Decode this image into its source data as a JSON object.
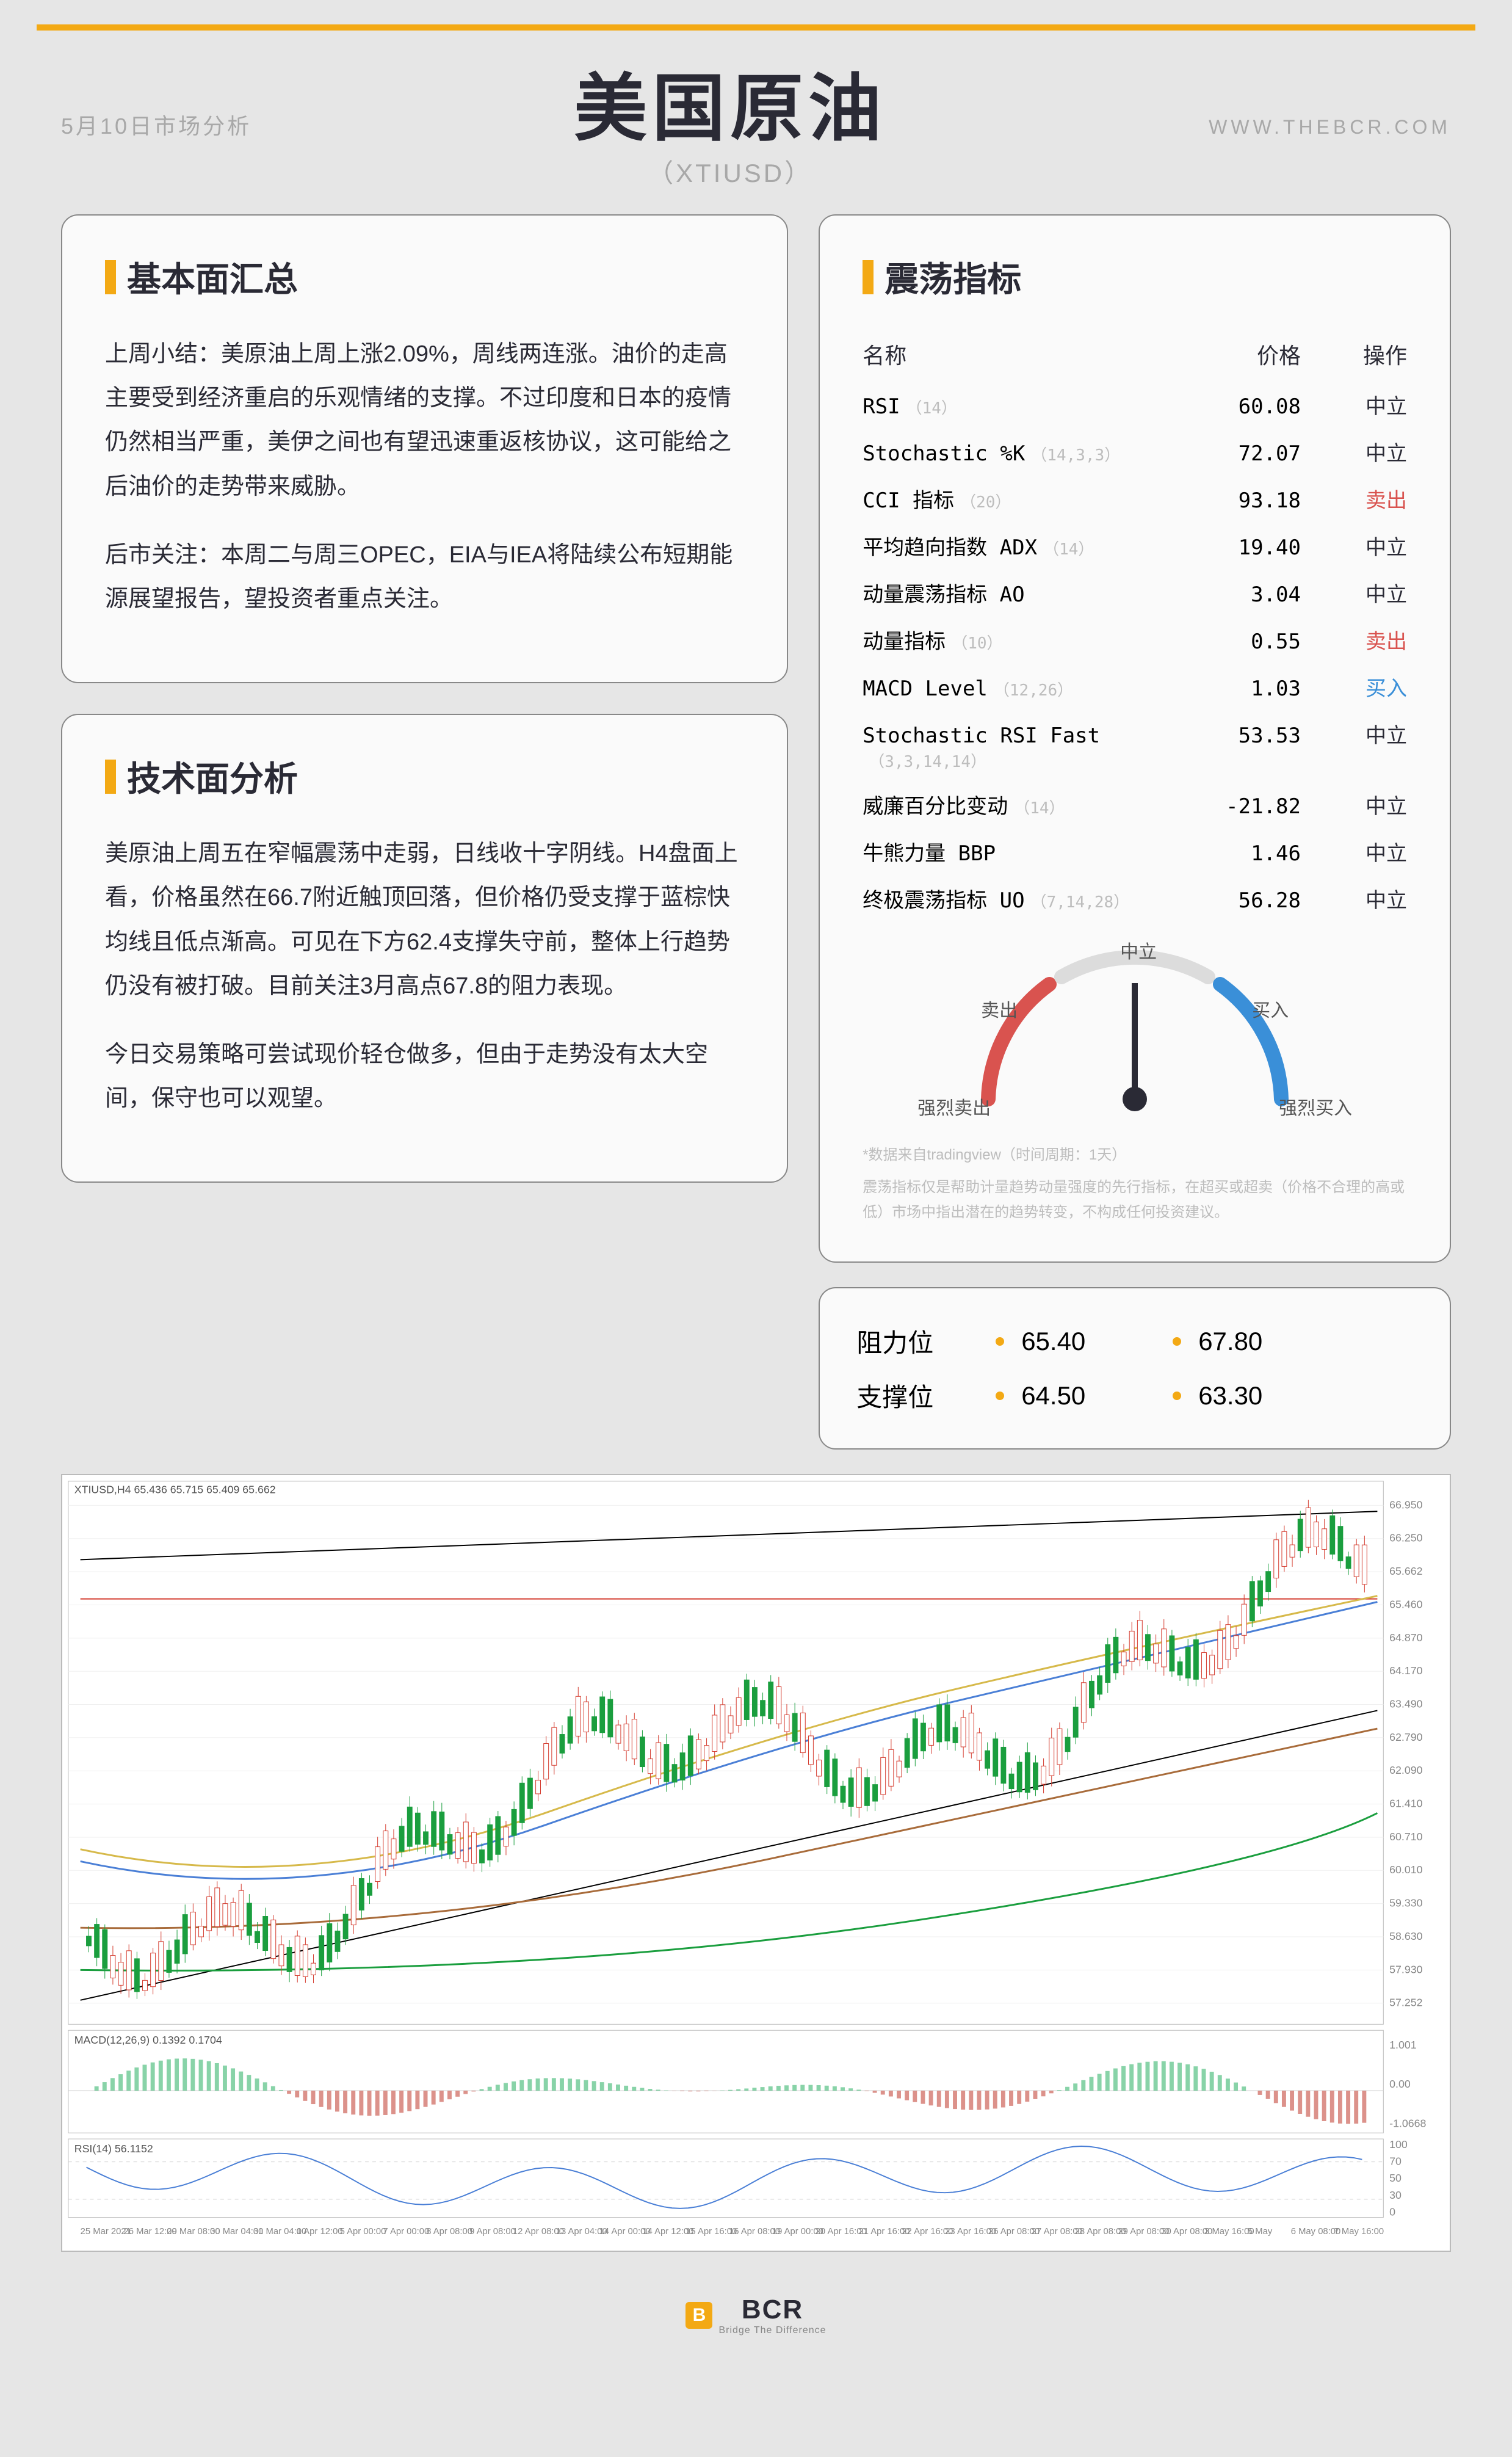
{
  "header": {
    "date": "5月10日市场分析",
    "title": "美国原油",
    "ticker": "（XTIUSD）",
    "site": "WWW.THEBCR.COM"
  },
  "fundamental": {
    "title": "基本面汇总",
    "p1": "上周小结：美原油上周上涨2.09%，周线两连涨。油价的走高主要受到经济重启的乐观情绪的支撑。不过印度和日本的疫情仍然相当严重，美伊之间也有望迅速重返核协议，这可能给之后油价的走势带来威胁。",
    "p2": "后市关注：本周二与周三OPEC，EIA与IEA将陆续公布短期能源展望报告，望投资者重点关注。"
  },
  "technical": {
    "title": "技术面分析",
    "p1": "美原油上周五在窄幅震荡中走弱，日线收十字阴线。H4盘面上看，价格虽然在66.7附近触顶回落，但价格仍受支撑于蓝棕快均线且低点渐高。可见在下方62.4支撑失守前，整体上行趋势仍没有被打破。目前关注3月高点67.8的阻力表现。",
    "p2": "今日交易策略可尝试现价轻仓做多，但由于走势没有太大空间，保守也可以观望。"
  },
  "oscillators": {
    "title": "震荡指标",
    "head_name": "名称",
    "head_price": "价格",
    "head_action": "操作",
    "rows": [
      {
        "name": "RSI",
        "params": "（14）",
        "value": "60.08",
        "action": "中立",
        "action_class": "act-neutral"
      },
      {
        "name": "Stochastic %K",
        "params": "（14,3,3）",
        "value": "72.07",
        "action": "中立",
        "action_class": "act-neutral"
      },
      {
        "name": "CCI 指标",
        "params": "（20）",
        "value": "93.18",
        "action": "卖出",
        "action_class": "act-sell"
      },
      {
        "name": "平均趋向指数 ADX",
        "params": "（14）",
        "value": "19.40",
        "action": "中立",
        "action_class": "act-neutral"
      },
      {
        "name": "动量震荡指标 AO",
        "params": "",
        "value": "3.04",
        "action": "中立",
        "action_class": "act-neutral"
      },
      {
        "name": "动量指标",
        "params": "（10）",
        "value": "0.55",
        "action": "卖出",
        "action_class": "act-sell"
      },
      {
        "name": "MACD Level",
        "params": "（12,26）",
        "value": "1.03",
        "action": "买入",
        "action_class": "act-buy"
      },
      {
        "name": "Stochastic RSI Fast",
        "params": "（3,3,14,14）",
        "value": "53.53",
        "action": "中立",
        "action_class": "act-neutral"
      },
      {
        "name": "威廉百分比变动",
        "params": "（14）",
        "value": "-21.82",
        "action": "中立",
        "action_class": "act-neutral"
      },
      {
        "name": "牛熊力量 BBP",
        "params": "",
        "value": "1.46",
        "action": "中立",
        "action_class": "act-neutral"
      },
      {
        "name": "终极震荡指标 UO",
        "params": "（7,14,28）",
        "value": "56.28",
        "action": "中立",
        "action_class": "act-neutral"
      }
    ],
    "gauge_labels": {
      "neutral": "中立",
      "sell": "卖出",
      "buy": "买入",
      "strong_sell": "强烈卖出",
      "strong_buy": "强烈买入"
    },
    "disclaimer1": "*数据来自tradingview（时间周期：1天）",
    "disclaimer2": "震荡指标仅是帮助计量趋势动量强度的先行指标，在超买或超卖（价格不合理的高或低）市场中指出潜在的趋势转变，不构成任何投资建议。"
  },
  "levels": {
    "resistance_label": "阻力位",
    "support_label": "支撑位",
    "resistance": [
      "65.40",
      "67.80"
    ],
    "support": [
      "64.50",
      "63.30"
    ]
  },
  "chart": {
    "title": "XTIUSD,H4 65.436 65.715 65.409 65.662",
    "price_ticks": [
      "66.950",
      "66.250",
      "65.662",
      "65.460",
      "64.870",
      "64.170",
      "63.490",
      "62.790",
      "62.090",
      "61.410",
      "60.710",
      "60.010",
      "59.330",
      "58.630",
      "57.930",
      "57.252"
    ],
    "macd_label": "MACD(12,26,9) 0.1392 0.1704",
    "macd_ticks": [
      "1.001",
      "0.00",
      "-1.0668"
    ],
    "rsi_label": "RSI(14) 56.1152",
    "rsi_ticks": [
      "100",
      "70",
      "50",
      "30",
      "0"
    ],
    "dates": [
      "25 Mar 2021",
      "26 Mar 12:00",
      "29 Mar 08:00",
      "30 Mar 04:00",
      "31 Mar 04:00",
      "1 Apr 12:00",
      "5 Apr 00:00",
      "7 Apr 00:00",
      "8 Apr 08:00",
      "9 Apr 08:00",
      "12 Apr 08:00",
      "13 Apr 04:00",
      "14 Apr 00:00",
      "14 Apr 12:00",
      "15 Apr 16:00",
      "16 Apr 08:00",
      "19 Apr 00:00",
      "20 Apr 16:00",
      "21 Apr 16:00",
      "22 Apr 16:00",
      "23 Apr 16:00",
      "26 Apr 08:00",
      "27 Apr 08:00",
      "28 Apr 08:00",
      "29 Apr 08:00",
      "30 Apr 08:00",
      "3 May 16:00",
      "5 May",
      "6 May 08:00",
      "7 May 16:00"
    ],
    "style": {
      "bg": "#ffffff",
      "up_candle": "#1a9e3e",
      "down_candle": "#d43a2d",
      "grid": "#efefef",
      "trend_line": "#000000",
      "support_line": "#d43a2d",
      "ma_yellow": "#d6b94a",
      "ma_blue": "#4a7fd6",
      "ma_brown": "#a86b3a",
      "macd_red": "#c0392b",
      "macd_green": "#27ae60",
      "rsi_line": "#4a7fd6"
    }
  },
  "footer": {
    "brand": "BCR",
    "tag": "Bridge The Difference"
  },
  "colors": {
    "accent": "#f3a914",
    "text_muted": "#a8a8a8",
    "text_body": "#2a2a35"
  }
}
